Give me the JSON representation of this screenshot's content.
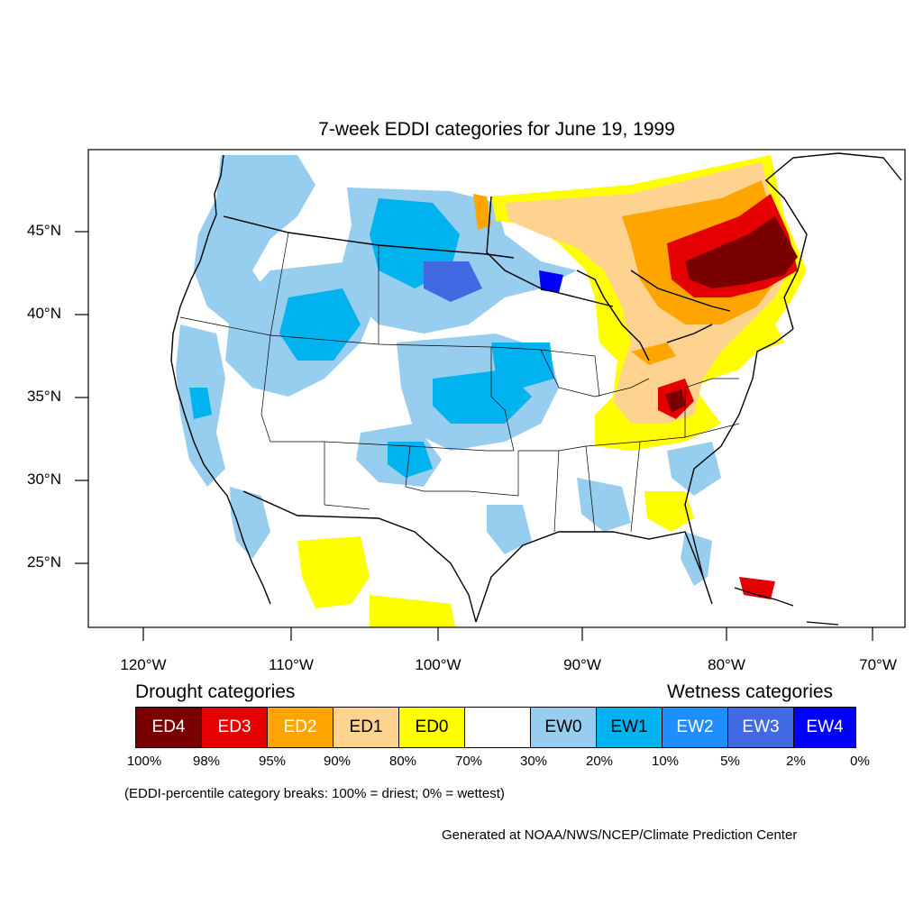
{
  "title": "7-week EDDI categories for June 19, 1999",
  "map": {
    "lat_labels": [
      {
        "text": "45°N",
        "lat": 45
      },
      {
        "text": "40°N",
        "lat": 40
      },
      {
        "text": "35°N",
        "lat": 35
      },
      {
        "text": "30°N",
        "lat": 30
      },
      {
        "text": "25°N",
        "lat": 25
      }
    ],
    "lon_labels": [
      {
        "text": "120°W",
        "lon": -120
      },
      {
        "text": "110°W",
        "lon": -110
      },
      {
        "text": "100°W",
        "lon": -100
      },
      {
        "text": "90°W",
        "lon": -90
      },
      {
        "text": "80°W",
        "lon": -80
      },
      {
        "text": "70°W",
        "lon": -70
      }
    ]
  },
  "legend": {
    "drought_heading": "Drought categories",
    "wetness_heading": "Wetness categories",
    "categories": [
      {
        "label": "ED4",
        "color": "#7a0000",
        "text_color": "#ffffff"
      },
      {
        "label": "ED3",
        "color": "#e50000",
        "text_color": "#ffffff"
      },
      {
        "label": "ED2",
        "color": "#ffa500",
        "text_color": "#ffffff"
      },
      {
        "label": "ED1",
        "color": "#fed38f",
        "text_color": "#000000"
      },
      {
        "label": "ED0",
        "color": "#ffff00",
        "text_color": "#000000"
      },
      {
        "label": "",
        "color": "#ffffff",
        "text_color": "#000000"
      },
      {
        "label": "EW0",
        "color": "#97cdee",
        "text_color": "#000000"
      },
      {
        "label": "EW1",
        "color": "#00b2ee",
        "text_color": "#000000"
      },
      {
        "label": "EW2",
        "color": "#1e8fff",
        "text_color": "#ffffff"
      },
      {
        "label": "EW3",
        "color": "#4169e1",
        "text_color": "#ffffff"
      },
      {
        "label": "EW4",
        "color": "#0000ff",
        "text_color": "#ffffff"
      }
    ],
    "breaks": [
      "100%",
      "98%",
      "95%",
      "90%",
      "80%",
      "70%",
      "30%",
      "20%",
      "10%",
      "5%",
      "2%",
      "0%"
    ],
    "note": "(EDDI-percentile category breaks: 100% = driest; 0% = wettest)"
  },
  "credit": "Generated at NOAA/NWS/NCEP/Climate Prediction Center"
}
